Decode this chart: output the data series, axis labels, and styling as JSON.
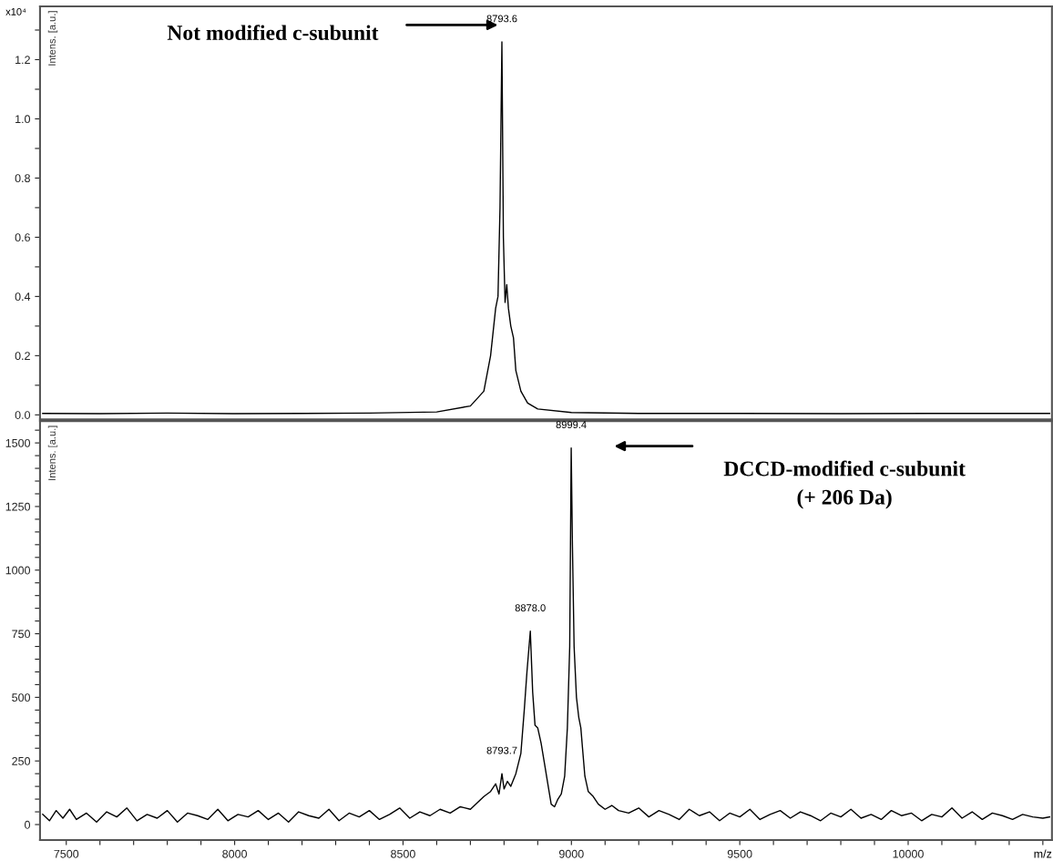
{
  "chart_data": [
    {
      "type": "line",
      "ylabel": "Intens. [a.u.]",
      "xlim": [
        7422,
        10427
      ],
      "ylim": [
        -0.015,
        1.38
      ],
      "tick_labels": "y",
      "xticks": [
        7500,
        {
          "value": 7600,
          "label": null
        },
        {
          "value": 7700,
          "label": null
        },
        {
          "value": 7800,
          "label": null
        },
        {
          "value": 7900,
          "label": null
        },
        8000,
        {
          "value": 8100,
          "label": null
        },
        {
          "value": 8200,
          "label": null
        },
        {
          "value": 8300,
          "label": null
        },
        {
          "value": 8400,
          "label": null
        },
        8500,
        {
          "value": 8600,
          "label": null
        },
        {
          "value": 8700,
          "label": null
        },
        {
          "value": 8800,
          "label": null
        },
        {
          "value": 8900,
          "label": null
        },
        9000,
        {
          "value": 9100,
          "label": null
        },
        {
          "value": 9200,
          "label": null
        },
        {
          "value": 9300,
          "label": null
        },
        {
          "value": 9400,
          "label": null
        },
        9500,
        {
          "value": 9600,
          "label": null
        },
        {
          "value": 9700,
          "label": null
        },
        {
          "value": 9800,
          "label": null
        },
        {
          "value": 9900,
          "label": null
        },
        10000,
        {
          "value": 10100,
          "label": null
        },
        {
          "value": 10200,
          "label": null
        },
        {
          "value": 10300,
          "label": null
        },
        {
          "value": 10400,
          "label": null
        }
      ],
      "yticks": [
        {
          "value": 0,
          "label": "0.0"
        },
        {
          "value": 0.1,
          "label": null
        },
        0.2,
        {
          "value": 0.3,
          "label": null
        },
        0.4,
        {
          "value": 0.5,
          "label": null
        },
        0.6,
        {
          "value": 0.7,
          "label": null
        },
        0.8,
        {
          "value": 0.9,
          "label": null
        },
        {
          "value": 1.0,
          "label": "1.0"
        },
        {
          "value": 1.1,
          "label": null
        },
        1.2,
        {
          "value": 1.3,
          "label": null
        }
      ],
      "grid": false,
      "legend": false,
      "marker": "none",
      "line_style": "solid",
      "series": [
        {
          "color": "#000000",
          "x": [
            7430,
            7600,
            7800,
            8000,
            8200,
            8400,
            8600,
            8700,
            8740,
            8760,
            8775,
            8782,
            8788,
            8793.6,
            8798,
            8803,
            8808,
            8813,
            8820,
            8828,
            8835,
            8850,
            8870,
            8900,
            9000,
            9200,
            9500,
            9800,
            10100,
            10420
          ],
          "values": [
            0.005,
            0.004,
            0.006,
            0.004,
            0.005,
            0.006,
            0.01,
            0.03,
            0.08,
            0.2,
            0.36,
            0.4,
            0.7,
            1.26,
            0.6,
            0.38,
            0.44,
            0.36,
            0.3,
            0.26,
            0.15,
            0.08,
            0.04,
            0.02,
            0.008,
            0.005,
            0.005,
            0.004,
            0.005,
            0.005
          ]
        }
      ],
      "annotations": [
        "x10⁴",
        "Not modified c-subunit",
        {
          "text": "8793.6",
          "x": 8793.6,
          "y": 1.26
        }
      ]
    },
    {
      "type": "line",
      "ylabel": "Intens. [a.u.]",
      "xlabel": "m/z",
      "xlim": [
        7422,
        10427
      ],
      "ylim": [
        -61,
        1586
      ],
      "xticks": [
        7500,
        {
          "value": 7600,
          "label": null
        },
        {
          "value": 7700,
          "label": null
        },
        {
          "value": 7800,
          "label": null
        },
        {
          "value": 7900,
          "label": null
        },
        8000,
        {
          "value": 8100,
          "label": null
        },
        {
          "value": 8200,
          "label": null
        },
        {
          "value": 8300,
          "label": null
        },
        {
          "value": 8400,
          "label": null
        },
        8500,
        {
          "value": 8600,
          "label": null
        },
        {
          "value": 8700,
          "label": null
        },
        {
          "value": 8800,
          "label": null
        },
        {
          "value": 8900,
          "label": null
        },
        9000,
        {
          "value": 9100,
          "label": null
        },
        {
          "value": 9200,
          "label": null
        },
        {
          "value": 9300,
          "label": null
        },
        {
          "value": 9400,
          "label": null
        },
        9500,
        {
          "value": 9600,
          "label": null
        },
        {
          "value": 9700,
          "label": null
        },
        {
          "value": 9800,
          "label": null
        },
        {
          "value": 9900,
          "label": null
        },
        10000,
        {
          "value": 10100,
          "label": null
        },
        {
          "value": 10200,
          "label": null
        },
        {
          "value": 10300,
          "label": null
        },
        {
          "value": 10400,
          "label": null
        }
      ],
      "yticks": [
        0,
        {
          "value": 50,
          "label": null
        },
        {
          "value": 100,
          "label": null
        },
        {
          "value": 150,
          "label": null
        },
        {
          "value": 200,
          "label": null
        },
        250,
        {
          "value": 300,
          "label": null
        },
        {
          "value": 350,
          "label": null
        },
        {
          "value": 400,
          "label": null
        },
        {
          "value": 450,
          "label": null
        },
        500,
        {
          "value": 550,
          "label": null
        },
        {
          "value": 600,
          "label": null
        },
        {
          "value": 650,
          "label": null
        },
        {
          "value": 700,
          "label": null
        },
        750,
        {
          "value": 800,
          "label": null
        },
        {
          "value": 850,
          "label": null
        },
        {
          "value": 900,
          "label": null
        },
        {
          "value": 950,
          "label": null
        },
        1000,
        {
          "value": 1050,
          "label": null
        },
        {
          "value": 1100,
          "label": null
        },
        {
          "value": 1150,
          "label": null
        },
        {
          "value": 1200,
          "label": null
        },
        1250,
        {
          "value": 1300,
          "label": null
        },
        {
          "value": 1350,
          "label": null
        },
        {
          "value": 1400,
          "label": null
        },
        {
          "value": 1450,
          "label": null
        },
        1500,
        {
          "value": 1550,
          "label": null
        }
      ],
      "grid": false,
      "legend": false,
      "marker": "none",
      "line_style": "solid",
      "series": [
        {
          "color": "#000000",
          "x": [
            7430,
            7450,
            7470,
            7490,
            7510,
            7530,
            7560,
            7590,
            7620,
            7650,
            7680,
            7710,
            7740,
            7770,
            7800,
            7830,
            7860,
            7890,
            7920,
            7950,
            7980,
            8010,
            8040,
            8070,
            8100,
            8130,
            8160,
            8190,
            8220,
            8250,
            8280,
            8310,
            8340,
            8370,
            8400,
            8430,
            8460,
            8490,
            8520,
            8550,
            8580,
            8610,
            8640,
            8670,
            8700,
            8720,
            8740,
            8760,
            8775,
            8785,
            8793.7,
            8800,
            8810,
            8820,
            8835,
            8850,
            8860,
            8868,
            8878.0,
            8885,
            8892,
            8900,
            8910,
            8920,
            8930,
            8940,
            8950,
            8960,
            8970,
            8980,
            8988,
            8995,
            8999.4,
            9003,
            9008,
            9015,
            9022,
            9028,
            9033,
            9040,
            9050,
            9065,
            9080,
            9100,
            9120,
            9140,
            9170,
            9200,
            9230,
            9260,
            9290,
            9320,
            9350,
            9380,
            9410,
            9440,
            9470,
            9500,
            9530,
            9560,
            9590,
            9620,
            9650,
            9680,
            9710,
            9740,
            9770,
            9800,
            9830,
            9860,
            9890,
            9920,
            9950,
            9980,
            10010,
            10040,
            10070,
            10100,
            10130,
            10160,
            10190,
            10220,
            10250,
            10280,
            10310,
            10340,
            10370,
            10400,
            10420
          ],
          "values": [
            40,
            15,
            55,
            25,
            60,
            20,
            45,
            10,
            50,
            30,
            65,
            15,
            40,
            25,
            55,
            10,
            45,
            35,
            20,
            60,
            15,
            40,
            30,
            55,
            20,
            45,
            10,
            50,
            35,
            25,
            60,
            15,
            45,
            30,
            55,
            20,
            40,
            65,
            25,
            50,
            35,
            60,
            45,
            70,
            60,
            85,
            110,
            130,
            160,
            120,
            200,
            140,
            170,
            150,
            200,
            280,
            450,
            600,
            760,
            520,
            390,
            380,
            320,
            240,
            160,
            80,
            70,
            100,
            120,
            190,
            380,
            700,
            1480,
            1100,
            700,
            500,
            420,
            380,
            300,
            190,
            130,
            110,
            80,
            60,
            75,
            55,
            45,
            65,
            30,
            55,
            40,
            20,
            60,
            35,
            50,
            15,
            45,
            30,
            60,
            20,
            40,
            55,
            25,
            50,
            35,
            15,
            45,
            30,
            60,
            25,
            40,
            20,
            55,
            35,
            45,
            15,
            40,
            30,
            65,
            25,
            50,
            20,
            45,
            35,
            20,
            40,
            30,
            25,
            30
          ]
        }
      ],
      "annotations": [
        "DCCD-modified c-subunit\n(+ 206 Da)",
        {
          "text": "8999.4",
          "x": 8999.4,
          "y": 1480
        },
        {
          "text": "8878.0",
          "x": 8878.0,
          "y": 760
        },
        {
          "text": "8793.7",
          "x": 8793.7,
          "y": 200
        }
      ]
    }
  ]
}
